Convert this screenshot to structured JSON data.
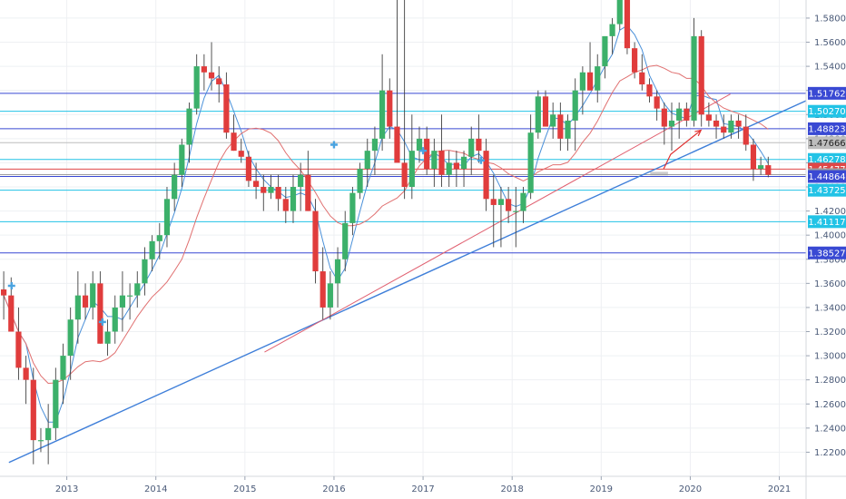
{
  "chart_data": {
    "type": "candlestick",
    "title": "",
    "instrument_note": "monthly candles",
    "ylim": [
      1.2,
      1.595
    ],
    "xlim": [
      2012.25,
      2021.3
    ],
    "y_ticks": [
      "1.22000",
      "1.24000",
      "1.26000",
      "1.28000",
      "1.30000",
      "1.32000",
      "1.34000",
      "1.36000",
      "1.38000",
      "1.40000",
      "1.42000",
      "1.44000",
      "1.46000",
      "1.48000",
      "1.50000",
      "1.52000",
      "1.54000",
      "1.56000",
      "1.58000"
    ],
    "x_ticks": [
      {
        "label": "2013",
        "x": 2013
      },
      {
        "label": "2014",
        "x": 2014
      },
      {
        "label": "2015",
        "x": 2015
      },
      {
        "label": "2016",
        "x": 2016
      },
      {
        "label": "2017",
        "x": 2017
      },
      {
        "label": "2018",
        "x": 2018
      },
      {
        "label": "2019",
        "x": 2019
      },
      {
        "label": "2020",
        "x": 2020
      },
      {
        "label": "2021",
        "x": 2021
      }
    ],
    "candles_ohlc": [
      [
        1.355,
        1.37,
        1.33,
        1.35
      ],
      [
        1.35,
        1.365,
        1.32,
        1.32
      ],
      [
        1.32,
        1.34,
        1.28,
        1.29
      ],
      [
        1.29,
        1.3,
        1.26,
        1.28
      ],
      [
        1.28,
        1.29,
        1.21,
        1.23
      ],
      [
        1.23,
        1.24,
        1.22,
        1.23
      ],
      [
        1.23,
        1.26,
        1.21,
        1.24
      ],
      [
        1.24,
        1.29,
        1.23,
        1.28
      ],
      [
        1.28,
        1.31,
        1.26,
        1.3
      ],
      [
        1.3,
        1.34,
        1.28,
        1.33
      ],
      [
        1.33,
        1.37,
        1.31,
        1.35
      ],
      [
        1.35,
        1.36,
        1.33,
        1.34
      ],
      [
        1.34,
        1.37,
        1.33,
        1.36
      ],
      [
        1.36,
        1.37,
        1.31,
        1.31
      ],
      [
        1.31,
        1.33,
        1.3,
        1.32
      ],
      [
        1.32,
        1.35,
        1.31,
        1.34
      ],
      [
        1.34,
        1.37,
        1.32,
        1.35
      ],
      [
        1.35,
        1.36,
        1.33,
        1.35
      ],
      [
        1.35,
        1.37,
        1.34,
        1.36
      ],
      [
        1.36,
        1.39,
        1.35,
        1.38
      ],
      [
        1.38,
        1.4,
        1.37,
        1.395
      ],
      [
        1.395,
        1.41,
        1.38,
        1.4
      ],
      [
        1.4,
        1.44,
        1.39,
        1.43
      ],
      [
        1.43,
        1.46,
        1.42,
        1.45
      ],
      [
        1.45,
        1.48,
        1.44,
        1.475
      ],
      [
        1.475,
        1.51,
        1.46,
        1.505
      ],
      [
        1.505,
        1.55,
        1.5,
        1.54
      ],
      [
        1.54,
        1.55,
        1.52,
        1.535
      ],
      [
        1.535,
        1.56,
        1.52,
        1.53
      ],
      [
        1.53,
        1.54,
        1.51,
        1.525
      ],
      [
        1.525,
        1.535,
        1.48,
        1.485
      ],
      [
        1.485,
        1.5,
        1.47,
        1.47
      ],
      [
        1.47,
        1.48,
        1.46,
        1.465
      ],
      [
        1.465,
        1.47,
        1.44,
        1.445
      ],
      [
        1.445,
        1.46,
        1.43,
        1.44
      ],
      [
        1.44,
        1.45,
        1.42,
        1.435
      ],
      [
        1.435,
        1.45,
        1.43,
        1.44
      ],
      [
        1.44,
        1.45,
        1.42,
        1.43
      ],
      [
        1.43,
        1.44,
        1.41,
        1.42
      ],
      [
        1.42,
        1.45,
        1.41,
        1.44
      ],
      [
        1.44,
        1.46,
        1.42,
        1.45
      ],
      [
        1.45,
        1.47,
        1.42,
        1.42
      ],
      [
        1.42,
        1.43,
        1.36,
        1.37
      ],
      [
        1.37,
        1.39,
        1.33,
        1.34
      ],
      [
        1.34,
        1.37,
        1.33,
        1.36
      ],
      [
        1.36,
        1.39,
        1.34,
        1.38
      ],
      [
        1.38,
        1.42,
        1.37,
        1.41
      ],
      [
        1.41,
        1.44,
        1.4,
        1.435
      ],
      [
        1.435,
        1.46,
        1.43,
        1.455
      ],
      [
        1.455,
        1.48,
        1.44,
        1.47
      ],
      [
        1.47,
        1.49,
        1.45,
        1.48
      ],
      [
        1.48,
        1.55,
        1.47,
        1.52
      ],
      [
        1.52,
        1.53,
        1.48,
        1.49
      ],
      [
        1.49,
        1.6,
        1.48,
        1.46
      ],
      [
        1.46,
        1.6,
        1.43,
        1.44
      ],
      [
        1.44,
        1.5,
        1.43,
        1.47
      ],
      [
        1.47,
        1.49,
        1.46,
        1.48
      ],
      [
        1.48,
        1.49,
        1.45,
        1.455
      ],
      [
        1.455,
        1.48,
        1.44,
        1.47
      ],
      [
        1.47,
        1.5,
        1.44,
        1.45
      ],
      [
        1.45,
        1.47,
        1.44,
        1.46
      ],
      [
        1.46,
        1.47,
        1.44,
        1.455
      ],
      [
        1.455,
        1.47,
        1.44,
        1.465
      ],
      [
        1.465,
        1.49,
        1.45,
        1.48
      ],
      [
        1.48,
        1.5,
        1.46,
        1.47
      ],
      [
        1.47,
        1.48,
        1.42,
        1.43
      ],
      [
        1.43,
        1.45,
        1.39,
        1.425
      ],
      [
        1.425,
        1.44,
        1.39,
        1.43
      ],
      [
        1.43,
        1.44,
        1.41,
        1.42
      ],
      [
        1.42,
        1.44,
        1.39,
        1.42
      ],
      [
        1.42,
        1.44,
        1.41,
        1.435
      ],
      [
        1.435,
        1.5,
        1.43,
        1.485
      ],
      [
        1.485,
        1.52,
        1.48,
        1.515
      ],
      [
        1.515,
        1.52,
        1.49,
        1.49
      ],
      [
        1.49,
        1.51,
        1.48,
        1.5
      ],
      [
        1.5,
        1.51,
        1.47,
        1.48
      ],
      [
        1.48,
        1.5,
        1.47,
        1.495
      ],
      [
        1.495,
        1.53,
        1.47,
        1.52
      ],
      [
        1.52,
        1.54,
        1.5,
        1.535
      ],
      [
        1.535,
        1.56,
        1.52,
        1.52
      ],
      [
        1.52,
        1.55,
        1.51,
        1.54
      ],
      [
        1.54,
        1.56,
        1.53,
        1.565
      ],
      [
        1.565,
        1.58,
        1.55,
        1.575
      ],
      [
        1.575,
        1.605,
        1.57,
        1.6
      ],
      [
        1.6,
        1.61,
        1.55,
        1.555
      ],
      [
        1.555,
        1.56,
        1.53,
        1.535
      ],
      [
        1.535,
        1.55,
        1.52,
        1.525
      ],
      [
        1.525,
        1.53,
        1.51,
        1.515
      ],
      [
        1.515,
        1.52,
        1.495,
        1.505
      ],
      [
        1.505,
        1.51,
        1.475,
        1.49
      ],
      [
        1.49,
        1.51,
        1.47,
        1.495
      ],
      [
        1.495,
        1.51,
        1.48,
        1.505
      ],
      [
        1.505,
        1.51,
        1.49,
        1.495
      ],
      [
        1.495,
        1.58,
        1.49,
        1.565
      ],
      [
        1.565,
        1.57,
        1.49,
        1.5
      ],
      [
        1.5,
        1.51,
        1.49,
        1.495
      ],
      [
        1.495,
        1.5,
        1.48,
        1.49
      ],
      [
        1.49,
        1.5,
        1.48,
        1.485
      ],
      [
        1.485,
        1.5,
        1.48,
        1.495
      ],
      [
        1.495,
        1.5,
        1.48,
        1.49
      ],
      [
        1.49,
        1.5,
        1.47,
        1.475
      ],
      [
        1.475,
        1.48,
        1.445,
        1.455
      ],
      [
        1.455,
        1.465,
        1.45,
        1.458
      ],
      [
        1.458,
        1.465,
        1.448,
        1.45
      ]
    ],
    "start_month": "2012-04",
    "levels": [
      {
        "label": "1.51762",
        "value": 1.51762,
        "color": "#3949d3"
      },
      {
        "label": "1.50270",
        "value": 1.5027,
        "color": "#22c3e6"
      },
      {
        "label": "1.48823",
        "value": 1.48823,
        "color": "#3949d3"
      },
      {
        "label": "1.47666",
        "value": 1.47666,
        "color": "#bdbdbd"
      },
      {
        "label": "1.46278",
        "value": 1.46278,
        "color": "#22c3e6"
      },
      {
        "label": "1.45477",
        "value": 1.45477,
        "color": "#e04747"
      },
      {
        "label": "1.45014",
        "value": 1.45014,
        "color": "#9e9e9e"
      },
      {
        "label": "1.44864",
        "value": 1.44864,
        "color": "#3949d3"
      },
      {
        "label": "1.43725",
        "value": 1.43725,
        "color": "#22c3e6"
      },
      {
        "label": "1.41117",
        "value": 1.41117,
        "color": "#22c3e6"
      },
      {
        "label": "1.38527",
        "value": 1.38527,
        "color": "#3949d3"
      }
    ],
    "trendlines": [
      {
        "name": "support",
        "color": "#3f7fd9",
        "from": [
          2012.35,
          1.2115
        ],
        "to": [
          2021.3,
          1.5115
        ]
      },
      {
        "name": "inner",
        "color": "#e06070",
        "from": [
          2015.22,
          1.303
        ],
        "to": [
          2020.45,
          1.517
        ]
      }
    ],
    "projection_arrow": {
      "from": [
        2019.7,
        1.4548
      ],
      "mid": [
        2019.78,
        1.467
      ],
      "to": [
        2020.12,
        1.487
      ],
      "color": "#e03030"
    },
    "support_box": {
      "x0": 2019.55,
      "x1": 2019.75,
      "y0": 1.4495,
      "y1": 1.4525,
      "color": "#bdbdbd"
    },
    "markers": [
      {
        "x": 2012.38,
        "y": 1.358,
        "color": "#4aa3e0"
      },
      {
        "x": 2013.4,
        "y": 1.328,
        "color": "#4aa3e0"
      },
      {
        "x": 2016.0,
        "y": 1.475,
        "color": "#4aa3e0"
      },
      {
        "x": 2017.0,
        "y": 1.47,
        "color": "#4aa3e0"
      },
      {
        "x": 2017.65,
        "y": 1.462,
        "color": "#4aa3e0"
      }
    ],
    "ma_fast_color": "#4a90d9",
    "ma_slow_color": "#e07070",
    "bull_color": "#3cb06a",
    "bear_color": "#e03c3c"
  }
}
